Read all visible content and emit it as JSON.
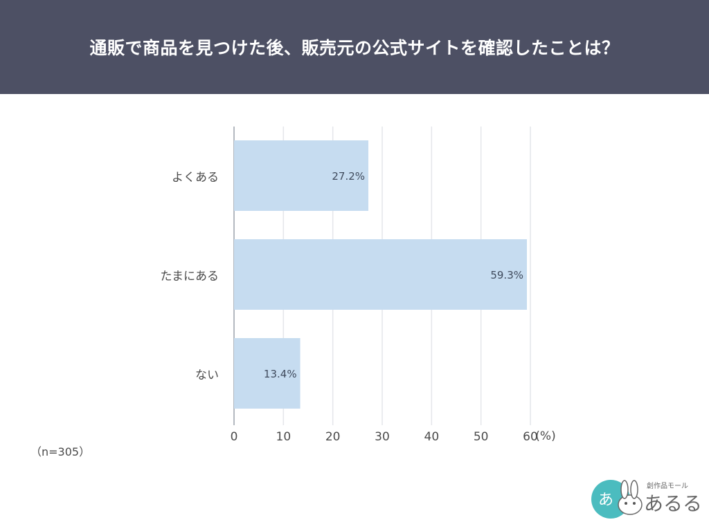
{
  "header": {
    "title": "通販で商品を見つけた後、販売元の公式サイトを確認したことは？"
  },
  "chart_data": {
    "type": "bar",
    "orientation": "horizontal",
    "categories": [
      "よくある",
      "たまにある",
      "ない"
    ],
    "values": [
      27.2,
      59.3,
      13.4
    ],
    "data_labels": [
      "27.2%",
      "59.3%",
      "13.4%"
    ],
    "xlim": [
      0,
      60
    ],
    "xticks": [
      "0",
      "10",
      "20",
      "30",
      "40",
      "50",
      "60"
    ],
    "x_unit": "(%)",
    "grid": true,
    "bar_color": "#c6dcf0"
  },
  "note": "（n=305）",
  "logo": {
    "text": "創作品モール あるる",
    "colors": {
      "circle": "#4bbcbf"
    }
  }
}
